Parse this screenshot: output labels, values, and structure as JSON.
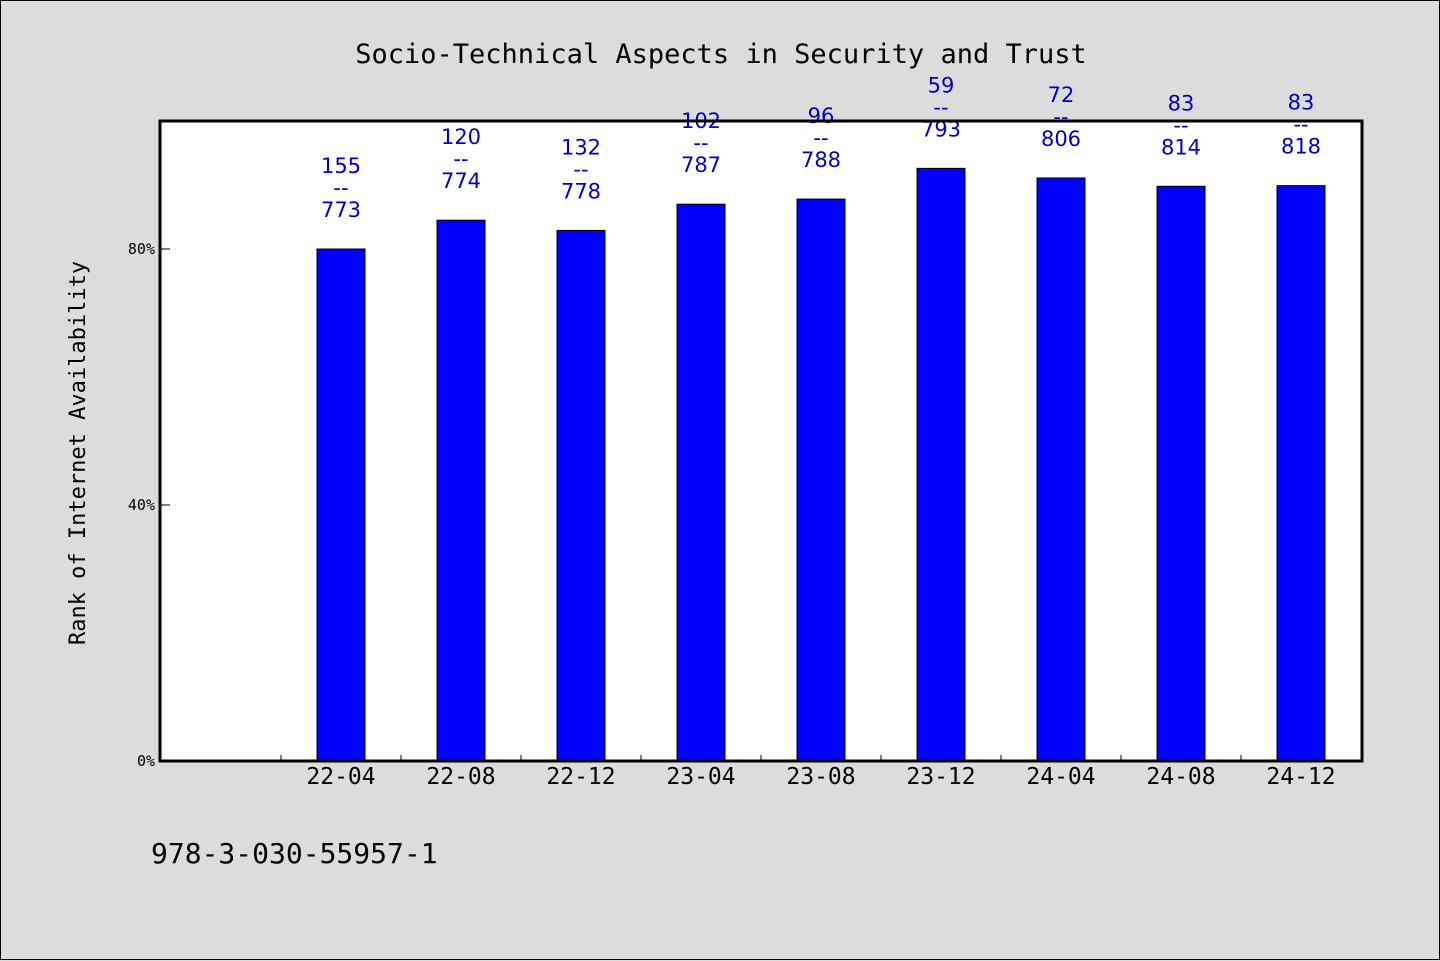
{
  "chart_data": {
    "type": "bar",
    "title": "Socio-Technical Aspects in Security and Trust",
    "xlabel": "",
    "ylabel": "Rank of Internet Availability",
    "ylim": [
      0,
      100
    ],
    "yticks": [
      0,
      40,
      80
    ],
    "ytick_labels": [
      "0%",
      "40%",
      "80%"
    ],
    "categories": [
      "22-04",
      "22-08",
      "22-12",
      "23-04",
      "23-08",
      "23-12",
      "24-04",
      "24-08",
      "24-12"
    ],
    "values": [
      80.0,
      84.5,
      82.9,
      87.0,
      87.8,
      92.6,
      91.1,
      89.8,
      89.9
    ],
    "labels": [
      [
        "155",
        "--",
        "773"
      ],
      [
        "120",
        "--",
        "774"
      ],
      [
        "132",
        "--",
        "778"
      ],
      [
        "102",
        "--",
        "787"
      ],
      [
        "96",
        "--",
        "788"
      ],
      [
        "59",
        "--",
        "793"
      ],
      [
        "72",
        "--",
        "806"
      ],
      [
        "83",
        "--",
        "814"
      ],
      [
        "83",
        "--",
        "818"
      ]
    ],
    "grid": false,
    "bar_color": "#0000ff",
    "label_color": "#0000c8",
    "background": "#dcdcdc",
    "plot_background": "#ffffff"
  },
  "footer": {
    "text": "978-3-030-55957-1"
  }
}
